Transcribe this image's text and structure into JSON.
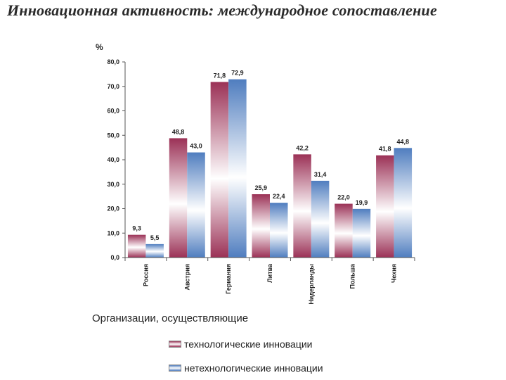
{
  "title": "Инновационная активность: международное сопоставление",
  "legend_title": "Организации, осуществляющие",
  "colors": {
    "tech": "#9b3156",
    "nontech": "#4f7dbf"
  },
  "chart_data": {
    "type": "bar",
    "ylabel": "%",
    "ylim": [
      0,
      80
    ],
    "yticks": [
      "0,0",
      "10,0",
      "20,0",
      "30,0",
      "40,0",
      "50,0",
      "60,0",
      "70,0",
      "80,0"
    ],
    "categories": [
      "Россия",
      "Австрия",
      "Германия",
      "Литва",
      "Нидерланды",
      "Польша",
      "Чехия"
    ],
    "series": [
      {
        "name": "технологические инновации",
        "values": [
          9.3,
          48.8,
          71.8,
          25.9,
          42.2,
          22.0,
          41.8
        ],
        "labels": [
          "9,3",
          "48,8",
          "71,8",
          "25,9",
          "42,2",
          "22,0",
          "41,8"
        ]
      },
      {
        "name": "нетехнологические инновации",
        "values": [
          5.5,
          43.0,
          72.9,
          22.4,
          31.4,
          19.9,
          44.8
        ],
        "labels": [
          "5,5",
          "43,0",
          "72,9",
          "22,4",
          "31,4",
          "19,9",
          "44,8"
        ]
      }
    ],
    "grid": false,
    "legend_position": "bottom"
  }
}
